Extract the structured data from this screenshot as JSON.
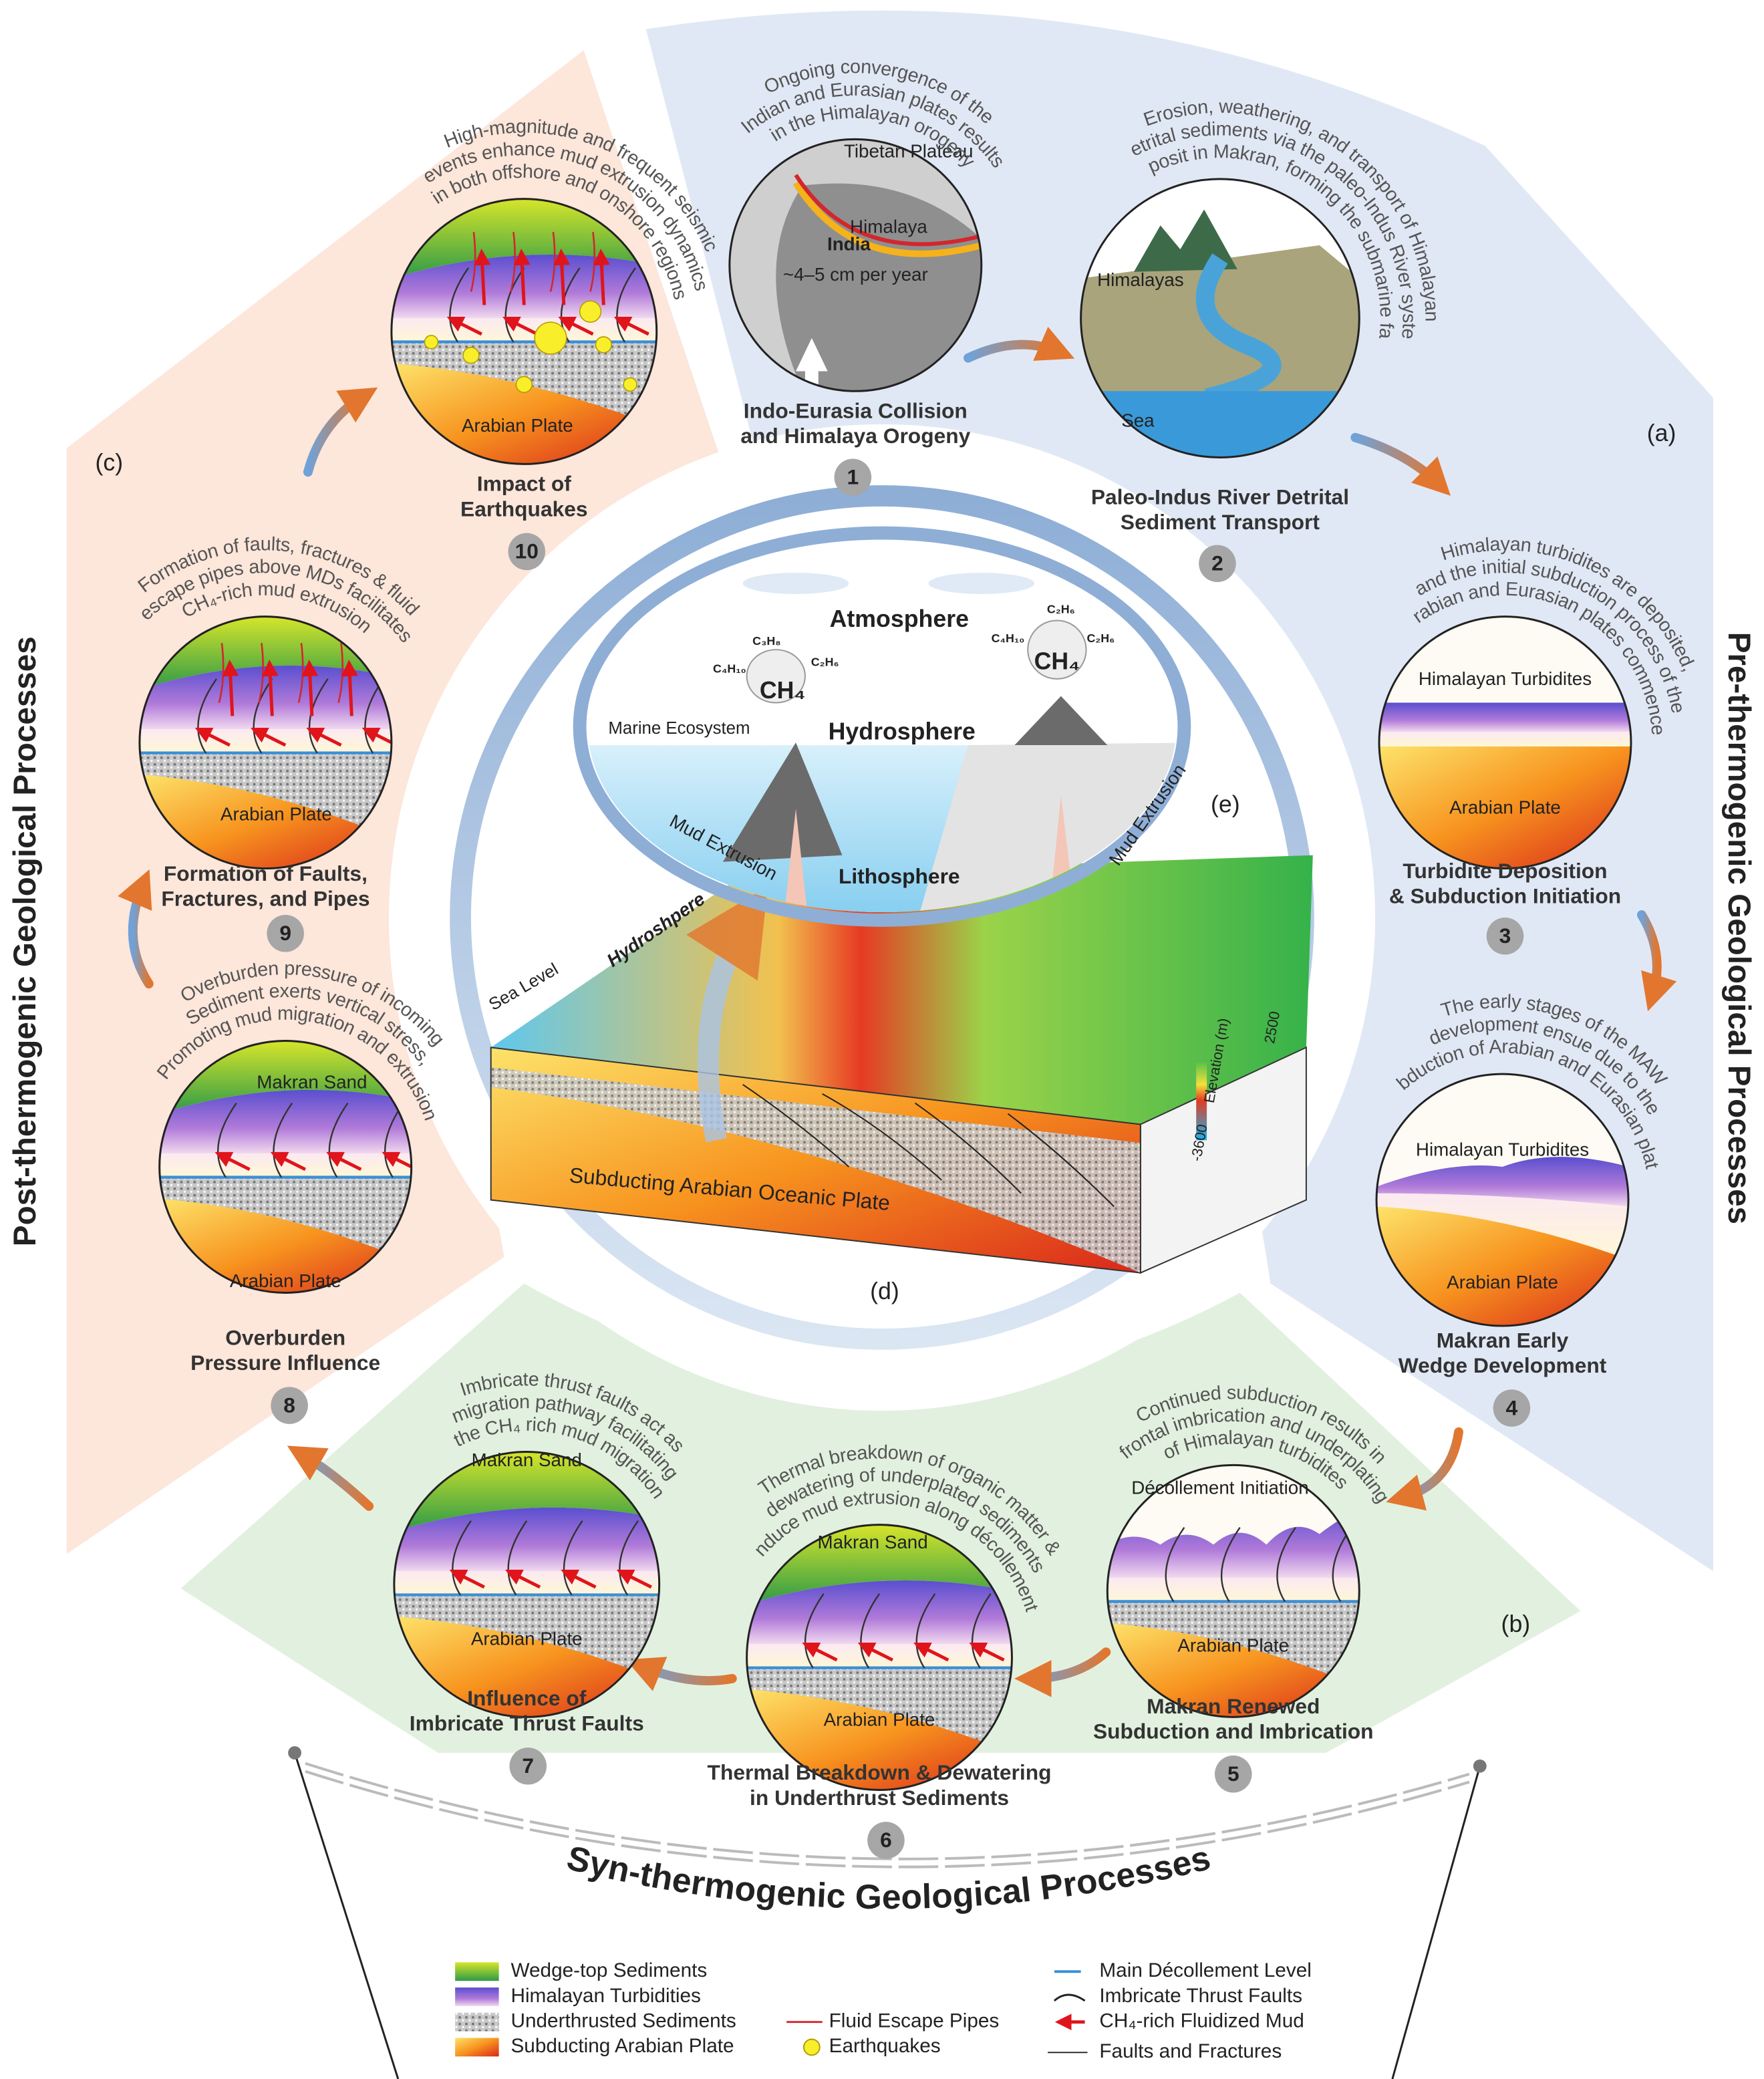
{
  "sections": {
    "pre": "Pre-thermogenic Geological Processes",
    "syn": "Syn-thermogenic Geological Processes",
    "post": "Post-thermogenic Geological Processes"
  },
  "panels": {
    "a": "(a)",
    "b": "(b)",
    "c": "(c)",
    "d": "(d)",
    "e": "(e)"
  },
  "steps": [
    {
      "number": 1,
      "title": [
        "Indo-Eurasia Collision",
        "and Himalaya Orogeny"
      ],
      "caption": [
        "Ongoing convergence of the",
        "Indian and Eurasian plates results",
        "in the Himalayan orogeny"
      ],
      "labels": [
        "Tibetan Plateau",
        "Himalaya",
        "India",
        "~4–5 cm per year"
      ]
    },
    {
      "number": 2,
      "title": [
        "Paleo-Indus River Detrital",
        "Sediment Transport"
      ],
      "caption": [
        "Erosion, weathering, and transport of Himalayan",
        "detrital sediments via the paleo-Indus River system",
        "deposit in Makran, forming the submarine fan."
      ],
      "labels": [
        "Himalayas",
        "Sea"
      ]
    },
    {
      "number": 3,
      "title": [
        "Turbidite Deposition",
        "& Subduction Initiation"
      ],
      "caption": [
        "Himalayan turbidites are deposited,",
        "and the initial subduction process of the",
        "Arabian and Eurasian plates commences"
      ],
      "labels": [
        "Himalayan Turbidites",
        "Arabian Plate"
      ]
    },
    {
      "number": 4,
      "title": [
        "Makran Early",
        "Wedge Development"
      ],
      "caption": [
        "The early stages of the MAW",
        "development ensue due to the",
        "subduction of Arabian and Eurasian plates"
      ],
      "labels": [
        "Himalayan Turbidites",
        "Arabian Plate"
      ]
    },
    {
      "number": 5,
      "title": [
        "Makran Renewed",
        "Subduction and Imbrication"
      ],
      "caption": [
        "Continued subduction results in",
        "frontal imbrication and underplating",
        "of Himalayan turbidites"
      ],
      "labels": [
        "Décollement Initiation",
        "Arabian Plate"
      ]
    },
    {
      "number": 6,
      "title": [
        "Thermal Breakdown & Dewatering",
        "in Underthrust Sediments"
      ],
      "caption": [
        "Thermal breakdown of organic matter &",
        "dewatering of underplated sediments",
        "induce mud extrusion along décollement."
      ],
      "labels": [
        "Makran Sand",
        "Arabian Plate"
      ]
    },
    {
      "number": 7,
      "title": [
        "Influence of",
        "Imbricate Thrust Faults"
      ],
      "caption": [
        "Imbricate thrust faults act as",
        "migration pathway facilitating",
        "the CH₄ rich mud migration"
      ],
      "labels": [
        "Makran Sand",
        "Arabian Plate"
      ]
    },
    {
      "number": 8,
      "title": [
        "Overburden",
        "Pressure Influence"
      ],
      "caption": [
        "Overburden pressure of incoming",
        "Sediment exerts vertical stress,",
        "Promoting mud migration and extrusion."
      ],
      "labels": [
        "Makran Sand",
        "Arabian Plate"
      ]
    },
    {
      "number": 9,
      "title": [
        "Formation of Faults,",
        "Fractures, and Pipes"
      ],
      "caption": [
        "Formation of faults, fractures & fluid",
        "escape pipes above MDs facilitates",
        "CH₄-rich mud extrusion"
      ],
      "labels": [
        "Arabian Plate"
      ]
    },
    {
      "number": 10,
      "title": [
        "Impact of",
        "Earthquakes"
      ],
      "caption": [
        "High-magnitude and frequent seismic",
        "events enhance mud extrusion dynamics",
        "in both offshore and onshore regions"
      ],
      "labels": [
        "Arabian Plate"
      ]
    }
  ],
  "center": {
    "atmosphere": "Atmosphere",
    "hydrosphere": "Hydrosphere",
    "lithosphere": "Lithosphere",
    "marine": "Marine Ecosystem",
    "mud_left": "Mud Extrusion",
    "mud_right": "Mud Extrusion",
    "gases_left": [
      "C₃H₈",
      "C₄H₁₀",
      "CH₄",
      "C₂H₆"
    ],
    "gases_right": [
      "C₂H₆",
      "C₄H₁₀",
      "CH₄",
      "C₂H₆"
    ]
  },
  "block": {
    "sea_level": "Sea Level",
    "hydrosphere": "Hydroshpere",
    "plate": "Subducting Arabian Oceanic Plate",
    "elevation_title": "Elevation (m)",
    "elevation_max": "2500",
    "elevation_min": "-3600"
  },
  "legend": {
    "items": [
      "Wedge-top Sediments",
      "Himalayan Turbidities",
      "Underthrusted Sediments",
      "Subducting Arabian Plate",
      "Fluid Escape Pipes",
      "Earthquakes",
      "Main Décollement Level",
      "Imbricate Thrust Faults",
      "CH₄-rich Fluidized Mud",
      "Faults and Fractures"
    ]
  }
}
